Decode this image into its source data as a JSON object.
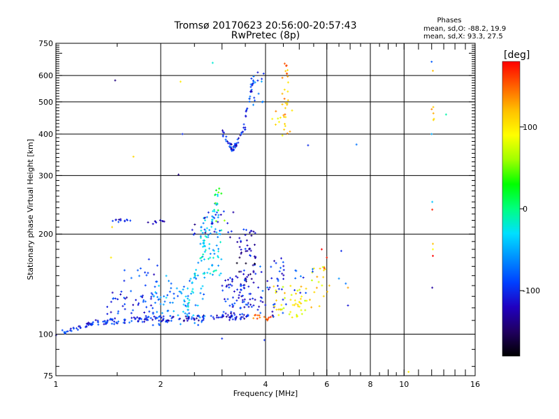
{
  "chart_data": {
    "type": "scatter",
    "title": "Tromsø 20170623 20:56:00-20:57:43",
    "subtitle": "RwPretec (8p)",
    "xlabel": "Frequency [MHz]",
    "ylabel": "Stationary phase Virtual Height [km]",
    "x_scale": "log",
    "y_scale": "log",
    "xlim": [
      1,
      16
    ],
    "ylim": [
      75,
      750
    ],
    "x_ticks": [
      1,
      2,
      4,
      6,
      8,
      10,
      16
    ],
    "x_minor_ticks": [
      1.5,
      3,
      5,
      7,
      9,
      12,
      14
    ],
    "x_gridlines": [
      2,
      4,
      6,
      8,
      10
    ],
    "y_ticks": [
      75,
      100,
      200,
      300,
      400,
      500,
      600,
      750
    ],
    "y_gridlines": [
      100,
      200,
      300,
      400,
      500,
      600
    ],
    "grid": true,
    "info": {
      "heading": "Phases",
      "line1": "mean, sd,O: -88.2, 19.9",
      "line2": "mean, sd,X:  93.3, 27.5"
    },
    "colorbar": {
      "label": "[deg]",
      "range": [
        -180,
        180
      ],
      "ticks": [
        100,
        0,
        -100
      ],
      "colormap": [
        "#000000",
        "#200060",
        "#2000c0",
        "#0040ff",
        "#0090ff",
        "#00e0ff",
        "#00ff80",
        "#00ff00",
        "#a0ff00",
        "#ffff00",
        "#ffc000",
        "#ff6000",
        "#ff0000"
      ]
    },
    "clusters": [
      {
        "kind": "line",
        "x0": 1.0,
        "x1": 1.28,
        "y0": 100,
        "y1": 108,
        "ph": -100,
        "n": 30,
        "jy": 0.018
      },
      {
        "kind": "line",
        "x0": 1.25,
        "x1": 2.0,
        "y0": 108,
        "y1": 112,
        "ph": -100,
        "n": 70,
        "jy": 0.02
      },
      {
        "kind": "line",
        "x0": 2.0,
        "x1": 3.6,
        "y0": 111,
        "y1": 113,
        "ph": -110,
        "n": 80,
        "jy": 0.02
      },
      {
        "kind": "line",
        "x0": 3.6,
        "x1": 4.2,
        "y0": 113,
        "y1": 112,
        "ph": 150,
        "n": 14,
        "jy": 0.015
      },
      {
        "kind": "box",
        "x0": 1.4,
        "x1": 1.95,
        "y0": 115,
        "y1": 135,
        "ph": -105,
        "n": 45
      },
      {
        "kind": "box",
        "x0": 1.9,
        "x1": 2.7,
        "y0": 106,
        "y1": 150,
        "ph": -60,
        "n": 80
      },
      {
        "kind": "box",
        "x0": 1.55,
        "x1": 2.0,
        "y0": 140,
        "y1": 165,
        "ph": -95,
        "n": 12
      },
      {
        "kind": "line",
        "x0": 2.35,
        "x1": 2.95,
        "y0": 115,
        "y1": 265,
        "ph": -35,
        "n": 55,
        "jy": 0.05
      },
      {
        "kind": "box",
        "x0": 2.6,
        "x1": 3.0,
        "y0": 150,
        "y1": 230,
        "ph": -40,
        "n": 60
      },
      {
        "kind": "box",
        "x0": 2.85,
        "x1": 3.05,
        "y0": 210,
        "y1": 275,
        "ph": 40,
        "n": 10
      },
      {
        "kind": "box",
        "x0": 3.0,
        "x1": 3.6,
        "y0": 112,
        "y1": 150,
        "ph": -105,
        "n": 60
      },
      {
        "kind": "box",
        "x0": 3.35,
        "x1": 3.75,
        "y0": 120,
        "y1": 210,
        "ph": -110,
        "n": 55
      },
      {
        "kind": "box",
        "x0": 3.3,
        "x1": 3.75,
        "y0": 150,
        "y1": 190,
        "ph": -145,
        "n": 15
      },
      {
        "kind": "box",
        "x0": 2.45,
        "x1": 3.3,
        "y0": 195,
        "y1": 235,
        "ph": -110,
        "n": 25
      },
      {
        "kind": "box",
        "x0": 3.8,
        "x1": 4.6,
        "y0": 112,
        "y1": 170,
        "ph": -100,
        "n": 45
      },
      {
        "kind": "box",
        "x0": 4.2,
        "x1": 5.2,
        "y0": 112,
        "y1": 140,
        "ph": 95,
        "n": 40
      },
      {
        "kind": "box",
        "x0": 5.0,
        "x1": 6.2,
        "y0": 118,
        "y1": 160,
        "ph": 100,
        "n": 25
      },
      {
        "kind": "box",
        "x0": 4.8,
        "x1": 5.5,
        "y0": 130,
        "y1": 160,
        "ph": -95,
        "n": 10
      },
      {
        "kind": "line",
        "x0": 1.45,
        "x1": 1.65,
        "y0": 218,
        "y1": 222,
        "ph": -110,
        "n": 12,
        "jy": 0.01
      },
      {
        "kind": "line",
        "x0": 1.83,
        "x1": 2.05,
        "y0": 215,
        "y1": 220,
        "ph": -110,
        "n": 10,
        "jy": 0.01
      },
      {
        "kind": "line",
        "x0": 3.0,
        "x1": 3.25,
        "y0": 405,
        "y1": 355,
        "ph": -105,
        "n": 25,
        "jy": 0.02
      },
      {
        "kind": "line",
        "x0": 3.2,
        "x1": 3.5,
        "y0": 352,
        "y1": 420,
        "ph": -105,
        "n": 25,
        "jy": 0.02
      },
      {
        "kind": "line",
        "x0": 3.45,
        "x1": 3.7,
        "y0": 420,
        "y1": 580,
        "ph": -100,
        "n": 22,
        "jy": 0.02
      },
      {
        "kind": "box",
        "x0": 3.6,
        "x1": 3.95,
        "y0": 480,
        "y1": 600,
        "ph": -75,
        "n": 14
      },
      {
        "kind": "box",
        "x0": 4.45,
        "x1": 4.65,
        "y0": 370,
        "y1": 660,
        "ph": 130,
        "n": 25
      },
      {
        "kind": "box",
        "x0": 4.1,
        "x1": 4.8,
        "y0": 390,
        "y1": 480,
        "ph": 110,
        "n": 12
      },
      {
        "kind": "box",
        "x0": 12.0,
        "x1": 12.2,
        "y0": 440,
        "y1": 490,
        "ph": 110,
        "n": 5
      }
    ],
    "points": [
      [
        1.48,
        580,
        -140
      ],
      [
        2.28,
        575,
        100
      ],
      [
        2.31,
        400,
        -100
      ],
      [
        2.25,
        302,
        -140
      ],
      [
        1.67,
        342,
        110
      ],
      [
        2.82,
        655,
        -20
      ],
      [
        1.45,
        210,
        110
      ],
      [
        1.44,
        170,
        100
      ],
      [
        1.85,
        168,
        -100
      ],
      [
        2.65,
        188,
        -40
      ],
      [
        3.0,
        97,
        -100
      ],
      [
        3.97,
        96,
        -100
      ],
      [
        4.05,
        110,
        150
      ],
      [
        5.0,
        125,
        100
      ],
      [
        5.3,
        370,
        -100
      ],
      [
        7.3,
        372,
        -70
      ],
      [
        6.6,
        178,
        -100
      ],
      [
        6.5,
        147,
        -60
      ],
      [
        6.8,
        142,
        -70
      ],
      [
        6.9,
        122,
        -110
      ],
      [
        6.1,
        140,
        120
      ],
      [
        6.9,
        138,
        130
      ],
      [
        5.9,
        158,
        170
      ],
      [
        6.0,
        170,
        170
      ],
      [
        5.8,
        180,
        180
      ],
      [
        12.0,
        660,
        -80
      ],
      [
        12.1,
        620,
        120
      ],
      [
        12.0,
        400,
        -50
      ],
      [
        12.05,
        250,
        -40
      ],
      [
        12.05,
        237,
        170
      ],
      [
        12.1,
        187,
        120
      ],
      [
        12.1,
        180,
        90
      ],
      [
        12.1,
        172,
        180
      ],
      [
        12.05,
        138,
        -130
      ],
      [
        13.2,
        458,
        -10
      ],
      [
        10.3,
        77,
        100
      ],
      [
        3.95,
        608,
        -100
      ],
      [
        3.8,
        613,
        -110
      ]
    ]
  }
}
